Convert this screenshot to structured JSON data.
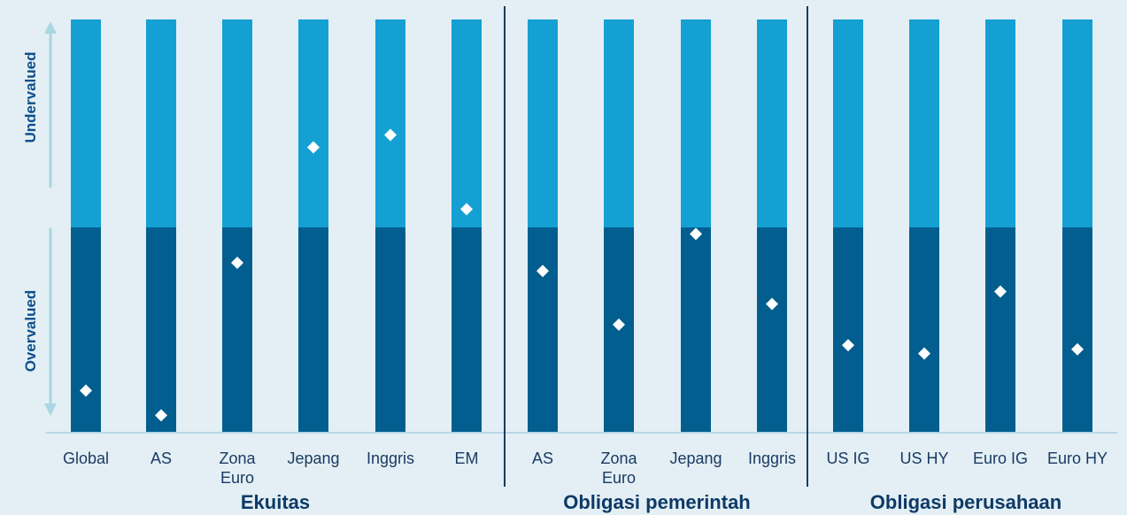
{
  "chart_data": {
    "type": "bar",
    "title": "",
    "ylim": [
      0,
      100
    ],
    "midpoint": 50,
    "categories": [
      {
        "label": "Global",
        "group": 0
      },
      {
        "label": "AS",
        "group": 0
      },
      {
        "label": "Zona\nEuro",
        "group": 0
      },
      {
        "label": "Jepang",
        "group": 0
      },
      {
        "label": "Inggris",
        "group": 0
      },
      {
        "label": "EM",
        "group": 0
      },
      {
        "label": "AS",
        "group": 1
      },
      {
        "label": "Zona\nEuro",
        "group": 1
      },
      {
        "label": "Jepang",
        "group": 1
      },
      {
        "label": "Inggris",
        "group": 1
      },
      {
        "label": "US IG",
        "group": 2
      },
      {
        "label": "US HY",
        "group": 2
      },
      {
        "label": "Euro IG",
        "group": 2
      },
      {
        "label": "Euro HY",
        "group": 2
      }
    ],
    "values": [
      10,
      4,
      41,
      69,
      72,
      54,
      39,
      26,
      48,
      31,
      21,
      19,
      34,
      20
    ],
    "groups": [
      "Ekuitas",
      "Obligasi pemerintah",
      "Obligasi perusahaan"
    ],
    "axis_labels": {
      "upper": "Undervalued",
      "lower": "Overvalued"
    },
    "colors": {
      "upper_band": "#14a0d3",
      "lower_band": "#025e8f",
      "marker": "#ffffff",
      "arrow": "#a9d6e3",
      "separator": "#1a3a63",
      "baseline": "#b8d6e6"
    }
  }
}
